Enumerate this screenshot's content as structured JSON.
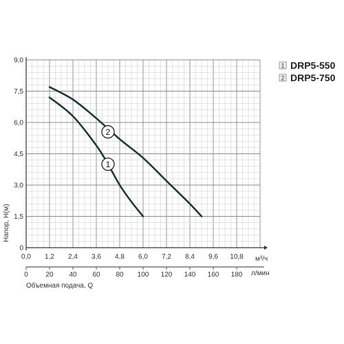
{
  "chart_data": {
    "type": "line",
    "title": "",
    "ylabel": "Напор, H(м)",
    "xlabel": "Объемная подача, Q",
    "x_unit": "м³/ч",
    "x2_unit": "л/мин",
    "y_ticks": [
      "0",
      "1,5",
      "3,0",
      "4,5",
      "6,0",
      "7,5",
      "9,0"
    ],
    "x_ticks": [
      "0,0",
      "1,2",
      "2,4",
      "3,6",
      "4,8",
      "6,0",
      "7,2",
      "8,4",
      "9,6",
      "10,8"
    ],
    "x2_ticks": [
      "0",
      "20",
      "40",
      "60",
      "80",
      "100",
      "120",
      "140",
      "160",
      "180"
    ],
    "xlim": [
      0,
      12
    ],
    "ylim": [
      0,
      9
    ],
    "grid": true,
    "legend_position": "top-right",
    "series": [
      {
        "name": "DRP5-550",
        "label": "1",
        "legend_number": "1",
        "color": "#1f3a34",
        "x": [
          1.2,
          2.4,
          3.6,
          4.2,
          4.8,
          5.4,
          6.0
        ],
        "y": [
          7.2,
          6.3,
          4.9,
          4.0,
          3.0,
          2.2,
          1.5
        ]
      },
      {
        "name": "DRP5-750",
        "label": "2",
        "legend_number": "2",
        "color": "#1f3a34",
        "x": [
          1.2,
          2.4,
          3.6,
          4.8,
          6.0,
          7.2,
          8.4,
          9.0
        ],
        "y": [
          7.7,
          7.1,
          6.2,
          5.2,
          4.3,
          3.2,
          2.1,
          1.5
        ]
      }
    ]
  },
  "colors": {
    "grid_minor": "#c8c8c8",
    "grid_major": "#8c8c8c",
    "curve": "#1f3a34",
    "text": "#333333"
  }
}
